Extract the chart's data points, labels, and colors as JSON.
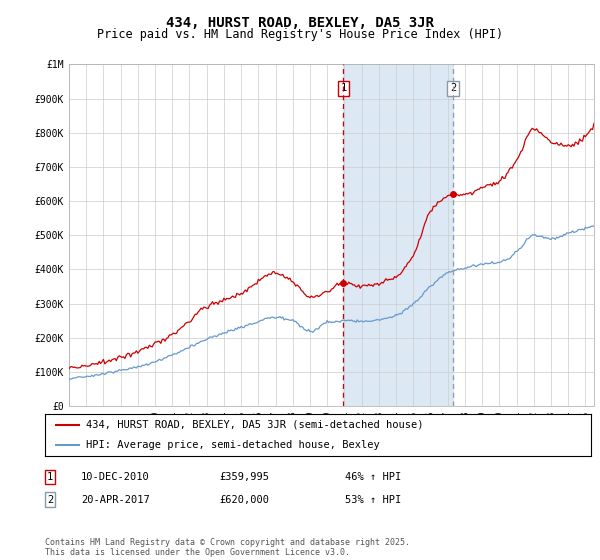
{
  "title": "434, HURST ROAD, BEXLEY, DA5 3JR",
  "subtitle": "Price paid vs. HM Land Registry's House Price Index (HPI)",
  "ylabel_ticks": [
    "£0",
    "£100K",
    "£200K",
    "£300K",
    "£400K",
    "£500K",
    "£600K",
    "£700K",
    "£800K",
    "£900K",
    "£1M"
  ],
  "ytick_values": [
    0,
    100000,
    200000,
    300000,
    400000,
    500000,
    600000,
    700000,
    800000,
    900000,
    1000000
  ],
  "ylim": [
    0,
    1000000
  ],
  "xlim_start": 1995.0,
  "xlim_end": 2025.5,
  "transaction1_date": 2010.94,
  "transaction1_price": 359995,
  "transaction2_date": 2017.31,
  "transaction2_price": 620000,
  "transaction1_date_str": "10-DEC-2010",
  "transaction1_price_str": "£359,995",
  "transaction1_hpi_str": "46% ↑ HPI",
  "transaction2_date_str": "20-APR-2017",
  "transaction2_price_str": "£620,000",
  "transaction2_hpi_str": "53% ↑ HPI",
  "red_line_color": "#cc0000",
  "blue_line_color": "#6699cc",
  "shade_color": "#dde8f5",
  "vline1_color": "#cc0000",
  "vline2_color": "#8899aa",
  "grid_color": "#cccccc",
  "background_color": "#ffffff",
  "legend_label_red": "434, HURST ROAD, BEXLEY, DA5 3JR (semi-detached house)",
  "legend_label_blue": "HPI: Average price, semi-detached house, Bexley",
  "footer_text": "Contains HM Land Registry data © Crown copyright and database right 2025.\nThis data is licensed under the Open Government Licence v3.0.",
  "title_fontsize": 10,
  "subtitle_fontsize": 8.5,
  "tick_fontsize": 7,
  "legend_fontsize": 7.5,
  "annot_fontsize": 7.5,
  "footer_fontsize": 6
}
